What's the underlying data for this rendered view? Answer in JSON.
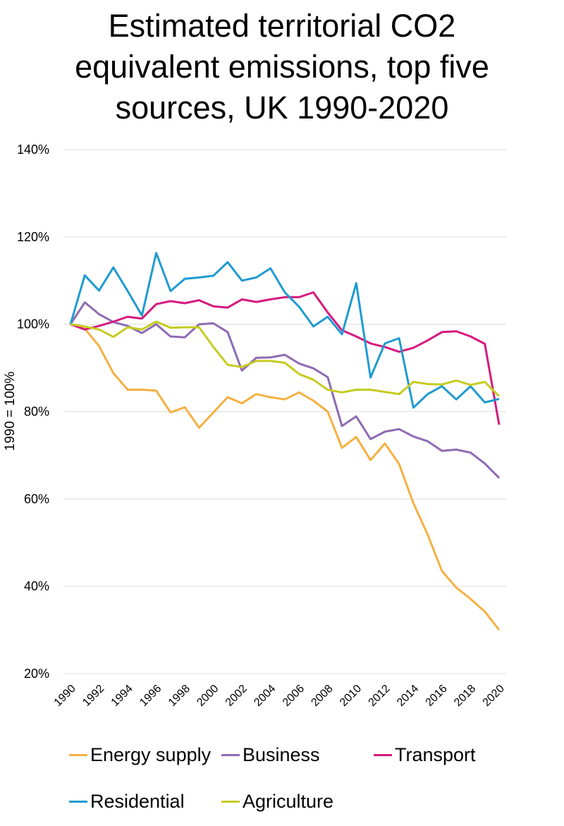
{
  "title_lines": [
    "Estimated territorial CO2",
    "equivalent emissions, top five",
    "sources, UK 1990-2020"
  ],
  "chart_data": {
    "type": "line",
    "title": "Estimated territorial CO2 equivalent emissions, top five sources, UK 1990-2020",
    "xlabel": "",
    "ylabel": "1990 = 100%",
    "ylim": [
      20,
      140
    ],
    "y_ticks": [
      "20%",
      "40%",
      "60%",
      "80%",
      "100%",
      "120%",
      "140%"
    ],
    "x_ticks": [
      "1990",
      "1992",
      "1994",
      "1996",
      "1998",
      "2000",
      "2002",
      "2004",
      "2006",
      "2008",
      "2010",
      "2012",
      "2014",
      "2016",
      "2018",
      "2020"
    ],
    "grid": true,
    "legend_position": "bottom",
    "x": [
      1990,
      1991,
      1992,
      1993,
      1994,
      1995,
      1996,
      1997,
      1998,
      1999,
      2000,
      2001,
      2002,
      2003,
      2004,
      2005,
      2006,
      2007,
      2008,
      2009,
      2010,
      2011,
      2012,
      2013,
      2014,
      2015,
      2016,
      2017,
      2018,
      2019,
      2020
    ],
    "series": [
      {
        "name": "Energy supply",
        "color": "#F5B041",
        "values": [
          100,
          99,
          95,
          88.8,
          85,
          85,
          84.8,
          79.8,
          81,
          76.3,
          79.8,
          83.3,
          81.9,
          84,
          83.3,
          82.8,
          84.4,
          82.5,
          80,
          71.7,
          74.2,
          68.9,
          72.7,
          68,
          59,
          51.8,
          43.5,
          39.7,
          37.1,
          34.2,
          30
        ]
      },
      {
        "name": "Business",
        "color": "#8E6BB3",
        "values": [
          100,
          105,
          102.3,
          100.5,
          99.6,
          98,
          100,
          97.2,
          97,
          100,
          100.2,
          98.2,
          89.4,
          92.3,
          92.4,
          93,
          91,
          89.9,
          87.9,
          76.7,
          78.9,
          73.7,
          75.4,
          76,
          74.3,
          73.2,
          71,
          71.3,
          70.6,
          68.1,
          64.8
        ]
      },
      {
        "name": "Transport",
        "color": "#D6197E",
        "values": [
          100,
          98.8,
          99.6,
          100.6,
          101.7,
          101.3,
          104.6,
          105.3,
          104.8,
          105.5,
          104.1,
          103.8,
          105.7,
          105.1,
          105.7,
          106.2,
          106.2,
          107.3,
          102.7,
          98.6,
          97.2,
          95.6,
          94.8,
          93.7,
          94.6,
          96.3,
          98.2,
          98.4,
          97.2,
          95.5,
          77
        ]
      },
      {
        "name": "Residential",
        "color": "#1F9BD1",
        "values": [
          100,
          111.2,
          107.7,
          113,
          107.6,
          102,
          116.3,
          107.6,
          110.4,
          110.7,
          111.1,
          114.2,
          110,
          110.7,
          112.8,
          107.3,
          104,
          99.5,
          101.7,
          97.7,
          109.4,
          87.8,
          95.6,
          96.8,
          80.9,
          84,
          85.8,
          82.8,
          85.8,
          82.1,
          82.9
        ]
      },
      {
        "name": "Agriculture",
        "color": "#C5CC1F",
        "values": [
          100,
          99.5,
          98.8,
          97.1,
          99.3,
          98.8,
          100.6,
          99.2,
          99.3,
          99.3,
          94.8,
          90.7,
          90.2,
          91.6,
          91.6,
          91.2,
          88.6,
          87.3,
          85,
          84.4,
          85,
          85,
          84.5,
          84,
          86.8,
          86.3,
          86.2,
          87.1,
          86.1,
          86.8,
          83.5
        ]
      }
    ]
  }
}
